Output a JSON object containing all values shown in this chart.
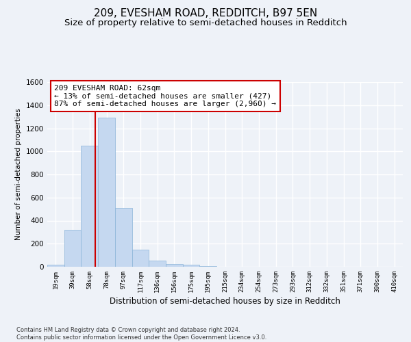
{
  "title_line1": "209, EVESHAM ROAD, REDDITCH, B97 5EN",
  "title_line2": "Size of property relative to semi-detached houses in Redditch",
  "xlabel": "Distribution of semi-detached houses by size in Redditch",
  "ylabel": "Number of semi-detached properties",
  "footnote": "Contains HM Land Registry data © Crown copyright and database right 2024.\nContains public sector information licensed under the Open Government Licence v3.0.",
  "bar_labels": [
    "19sqm",
    "39sqm",
    "58sqm",
    "78sqm",
    "97sqm",
    "117sqm",
    "136sqm",
    "156sqm",
    "175sqm",
    "195sqm",
    "215sqm",
    "234sqm",
    "254sqm",
    "273sqm",
    "293sqm",
    "312sqm",
    "332sqm",
    "351sqm",
    "371sqm",
    "390sqm",
    "410sqm"
  ],
  "bar_values": [
    15,
    320,
    1050,
    1290,
    510,
    150,
    55,
    25,
    15,
    5,
    0,
    0,
    0,
    0,
    0,
    0,
    0,
    0,
    0,
    0,
    0
  ],
  "bar_color": "#c5d8f0",
  "bar_edgecolor": "#8ab4d8",
  "annotation_text": "209 EVESHAM ROAD: 62sqm\n← 13% of semi-detached houses are smaller (427)\n87% of semi-detached houses are larger (2,960) →",
  "annotation_box_color": "#ffffff",
  "annotation_box_edgecolor": "#cc0000",
  "vline_color": "#cc0000",
  "vline_x_index": 2.35,
  "ylim": [
    0,
    1600
  ],
  "yticks": [
    0,
    200,
    400,
    600,
    800,
    1000,
    1200,
    1400,
    1600
  ],
  "bg_color": "#eef2f8",
  "grid_color": "#ffffff",
  "title_fontsize": 11,
  "subtitle_fontsize": 9.5,
  "annotation_fontsize": 8,
  "xlabel_fontsize": 8.5,
  "ylabel_fontsize": 7.5,
  "footnote_fontsize": 6
}
